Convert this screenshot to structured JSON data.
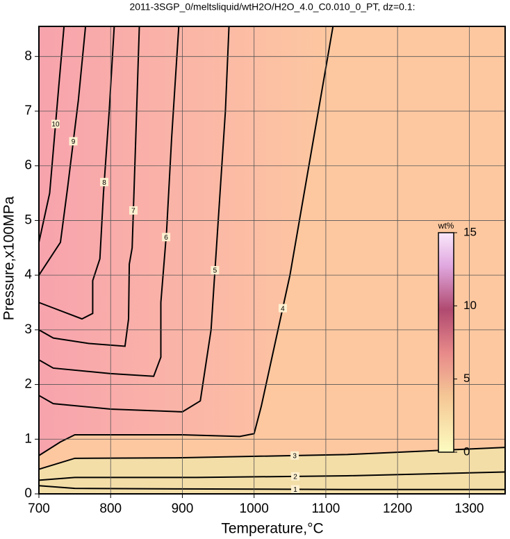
{
  "chart_data": {
    "type": "contour",
    "title": "2011-3SGP_0/meltsliquid/wtH2O/H2O_4.0_C0.010_0_PT, dz=0.1:",
    "x_label": "Temperature,°C",
    "y_label": "Pressure,x100MPa",
    "xlim": [
      700,
      1350
    ],
    "ylim": [
      0,
      8.55
    ],
    "xticks": [
      700,
      800,
      900,
      1000,
      1100,
      1200,
      1300
    ],
    "yticks": [
      0,
      1,
      2,
      3,
      4,
      5,
      6,
      7,
      8
    ],
    "grid": true,
    "contours": [
      {
        "level": 1,
        "x": [
          700,
          750,
          900,
          1130,
          1350
        ],
        "y": [
          0.15,
          0.1,
          0.09,
          0.08,
          0.08
        ]
      },
      {
        "level": 2,
        "x": [
          700,
          750,
          920,
          1130,
          1350
        ],
        "y": [
          0.25,
          0.3,
          0.3,
          0.33,
          0.4
        ]
      },
      {
        "level": 3,
        "x": [
          700,
          750,
          900,
          1130,
          1350
        ],
        "y": [
          0.45,
          0.65,
          0.66,
          0.72,
          0.85
        ]
      },
      {
        "level": 4,
        "x": [
          700,
          730,
          750,
          900,
          980,
          1000,
          1010,
          1050,
          1110
        ],
        "y": [
          0.7,
          0.95,
          1.08,
          1.08,
          1.05,
          1.1,
          1.6,
          4.0,
          8.55
        ]
      },
      {
        "level": 5,
        "x": [
          700,
          720,
          800,
          900,
          925,
          940,
          950,
          960,
          965
        ],
        "y": [
          1.8,
          1.65,
          1.55,
          1.5,
          1.7,
          3.0,
          5.0,
          7.0,
          8.55
        ]
      },
      {
        "level": 6,
        "x": [
          700,
          720,
          800,
          860,
          870,
          870,
          878,
          885,
          895
        ],
        "y": [
          2.45,
          2.3,
          2.2,
          2.15,
          2.5,
          3.5,
          4.8,
          6.5,
          8.55
        ]
      },
      {
        "level": 7,
        "x": [
          700,
          720,
          770,
          820,
          825,
          826,
          830,
          835,
          840
        ],
        "y": [
          3.0,
          2.85,
          2.75,
          2.7,
          3.2,
          4.2,
          4.5,
          6.5,
          8.55
        ]
      },
      {
        "level": 8,
        "x": [
          700,
          720,
          760,
          775,
          775,
          785,
          790,
          798,
          805
        ],
        "y": [
          3.5,
          3.4,
          3.2,
          3.3,
          3.9,
          4.3,
          5.5,
          7.0,
          8.55
        ]
      },
      {
        "level": 9,
        "x": [
          700,
          730,
          740,
          755,
          765
        ],
        "y": [
          4.0,
          4.6,
          5.6,
          7.2,
          8.55
        ]
      },
      {
        "level": 10,
        "x": [
          700,
          715,
          728,
          735
        ],
        "y": [
          4.6,
          5.5,
          7.5,
          8.55
        ]
      }
    ],
    "colorbar": {
      "label": "wt%",
      "lim": [
        0,
        15
      ],
      "ticks": [
        0,
        5,
        10,
        15
      ]
    }
  }
}
